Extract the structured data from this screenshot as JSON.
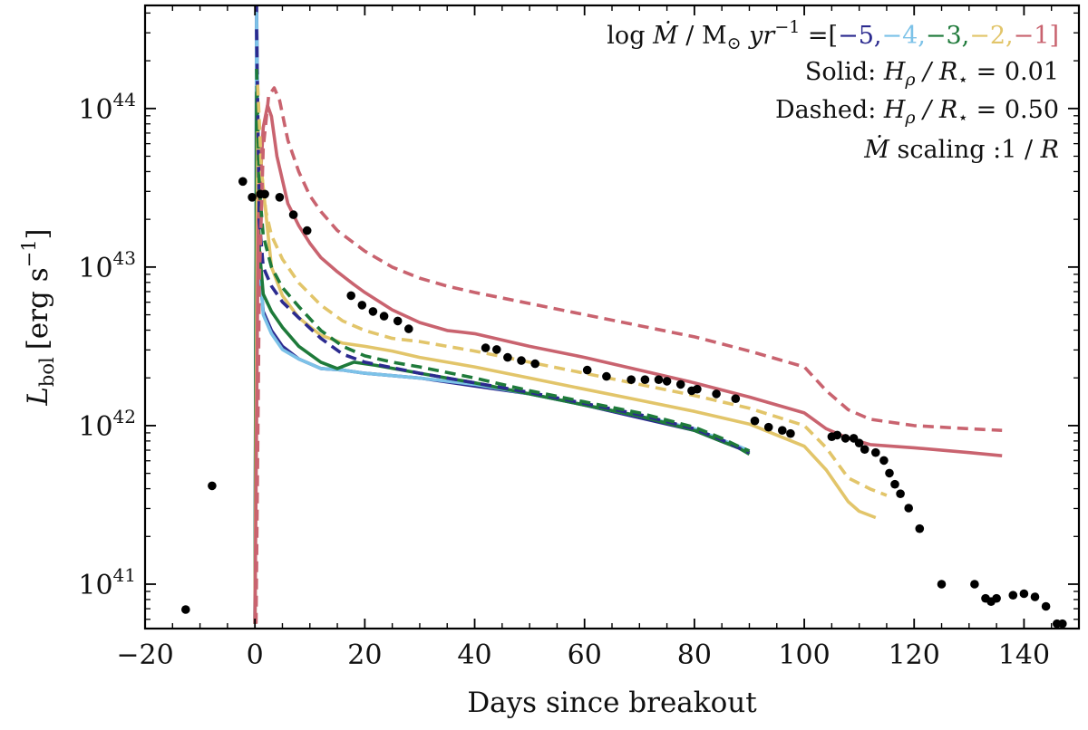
{
  "chart_data": {
    "type": "line",
    "title": "",
    "xlabel": "Days since breakout",
    "ylabel_main": "L",
    "ylabel_sub": "bol",
    "ylabel_units": "[erg s",
    "ylabel_units_exp": "−1",
    "ylabel_units_close": "]",
    "xlim": [
      -20,
      150
    ],
    "ylim_log10": [
      40.72,
      44.65
    ],
    "yscale": "log",
    "xticks": [
      -20,
      0,
      20,
      40,
      60,
      80,
      100,
      120,
      140
    ],
    "xtick_labels": [
      "−20",
      "0",
      "20",
      "40",
      "60",
      "80",
      "100",
      "120",
      "140"
    ],
    "yticks_log10": [
      41,
      42,
      43,
      44
    ],
    "ytick_base": "10",
    "ytick_exps": [
      "41",
      "42",
      "43",
      "44"
    ],
    "grid": false,
    "legend": {
      "placement": "top-right",
      "line1_prefix": "log ",
      "line1_mdot": "Ṁ",
      "line1_mid": " / M",
      "line1_sun": "⊙",
      "line1_yr": " yr",
      "line1_yr_exp": "−1",
      "line1_eq": " =[",
      "line1_close": "]",
      "mdot_values": [
        {
          "label": "−5,",
          "color": "#2b2a8f"
        },
        {
          "label": "−4,",
          "color": "#7cc2e8"
        },
        {
          "label": "−3,",
          "color": "#1e7a3a"
        },
        {
          "label": "−2,",
          "color": "#e2c56a"
        },
        {
          "label": "−1",
          "color": "#c9636f"
        }
      ],
      "solid_label": "Solid: ",
      "solid_h": "H",
      "solid_rho": "ρ",
      "solid_r": " / R",
      "solid_star": "⋆",
      "solid_value": " = 0.01",
      "dashed_label": "Dashed: ",
      "dashed_h": "H",
      "dashed_rho": "ρ",
      "dashed_r": " / R",
      "dashed_star": "⋆",
      "dashed_value": " = 0.50",
      "scaling_mdot": "Ṁ",
      "scaling_text": " scaling :1 / ",
      "scaling_r": "R"
    },
    "colors": {
      "m5": "#2b2a8f",
      "m4": "#7cc2e8",
      "m3": "#1e7a3a",
      "m2": "#e2c56a",
      "m1": "#c9636f",
      "obs": "#000000"
    },
    "series": [
      {
        "name": "logMdot=-5 solid",
        "color": "#2b2a8f",
        "dash": false,
        "x": [
          0,
          0.3,
          0.8,
          1.5,
          3,
          5,
          8,
          12,
          16,
          20,
          30,
          40,
          50,
          60,
          70,
          80,
          85,
          88,
          90
        ],
        "y": [
          40.75,
          44.65,
          43.0,
          42.72,
          42.6,
          42.5,
          42.42,
          42.36,
          42.35,
          42.33,
          42.3,
          42.25,
          42.2,
          42.13,
          42.05,
          41.97,
          41.9,
          41.86,
          41.83
        ]
      },
      {
        "name": "logMdot=-4 solid",
        "color": "#7cc2e8",
        "dash": false,
        "x": [
          0,
          0.3,
          0.8,
          1.5,
          3,
          5,
          8,
          12,
          16,
          20,
          30,
          40,
          50,
          60,
          70,
          80,
          85,
          88,
          90
        ],
        "y": [
          40.75,
          44.6,
          43.05,
          42.7,
          42.58,
          42.48,
          42.42,
          42.36,
          42.35,
          42.33,
          42.3,
          42.26,
          42.2,
          42.13,
          42.06,
          41.98,
          41.91,
          41.87,
          41.84
        ]
      },
      {
        "name": "logMdot=-3 solid",
        "color": "#1e7a3a",
        "dash": false,
        "x": [
          0,
          0.3,
          0.8,
          1.5,
          3,
          5,
          8,
          12,
          15,
          18,
          22,
          30,
          40,
          50,
          60,
          70,
          80,
          85,
          88,
          90
        ],
        "y": [
          40.75,
          44.1,
          43.12,
          42.83,
          42.72,
          42.62,
          42.5,
          42.4,
          42.36,
          42.4,
          42.38,
          42.33,
          42.27,
          42.2,
          42.13,
          42.06,
          41.97,
          41.9,
          41.86,
          41.82
        ]
      },
      {
        "name": "logMdot=-2 solid",
        "color": "#e2c56a",
        "dash": false,
        "x": [
          0,
          0.5,
          1.5,
          3,
          5,
          8,
          12,
          16,
          20,
          25,
          30,
          40,
          50,
          60,
          70,
          80,
          90,
          100,
          104,
          108,
          110,
          113
        ],
        "y": [
          40.75,
          43.85,
          43.5,
          43.0,
          42.82,
          42.68,
          42.57,
          42.52,
          42.5,
          42.47,
          42.43,
          42.37,
          42.3,
          42.23,
          42.16,
          42.09,
          42.01,
          41.87,
          41.72,
          41.52,
          41.46,
          41.42
        ]
      },
      {
        "name": "logMdot=-1 solid",
        "color": "#c9636f",
        "dash": false,
        "x": [
          0,
          0.6,
          1.5,
          2.3,
          3,
          4,
          6,
          8,
          10,
          12,
          15,
          18,
          20,
          25,
          30,
          35,
          40,
          50,
          60,
          70,
          80,
          90,
          100,
          104,
          108,
          112,
          120,
          130,
          136
        ],
        "y": [
          40.75,
          43.3,
          43.88,
          44.02,
          43.95,
          43.7,
          43.4,
          43.26,
          43.15,
          43.06,
          42.97,
          42.89,
          42.84,
          42.73,
          42.65,
          42.6,
          42.58,
          42.5,
          42.43,
          42.35,
          42.27,
          42.18,
          42.08,
          41.98,
          41.92,
          41.88,
          41.86,
          41.83,
          41.81
        ]
      },
      {
        "name": "logMdot=-5 dashed",
        "color": "#2b2a8f",
        "dash": true,
        "x": [
          0.3,
          0.8,
          1.5,
          3,
          5,
          8,
          12,
          16,
          20,
          30,
          40,
          50,
          60,
          70,
          80,
          85,
          88,
          90
        ],
        "y": [
          44.5,
          43.3,
          43.0,
          42.88,
          42.78,
          42.68,
          42.55,
          42.45,
          42.4,
          42.33,
          42.27,
          42.21,
          42.14,
          42.07,
          41.98,
          41.91,
          41.86,
          41.83
        ]
      },
      {
        "name": "logMdot=-3 dashed",
        "color": "#1e7a3a",
        "dash": true,
        "x": [
          0.3,
          0.8,
          1.5,
          3,
          5,
          8,
          12,
          16,
          20,
          25,
          30,
          40,
          50,
          60,
          70,
          80,
          85,
          88,
          90
        ],
        "y": [
          44.25,
          43.5,
          43.2,
          43.0,
          42.87,
          42.75,
          42.6,
          42.5,
          42.44,
          42.4,
          42.37,
          42.3,
          42.22,
          42.15,
          42.08,
          41.99,
          41.92,
          41.87,
          41.84
        ]
      },
      {
        "name": "logMdot=-2 dashed",
        "color": "#e2c56a",
        "dash": true,
        "x": [
          0.5,
          1.2,
          2,
          3,
          5,
          8,
          12,
          16,
          20,
          25,
          30,
          40,
          50,
          60,
          70,
          80,
          90,
          100,
          104,
          108,
          112,
          115
        ],
        "y": [
          44.15,
          43.6,
          43.35,
          43.2,
          43.05,
          42.9,
          42.76,
          42.66,
          42.6,
          42.55,
          42.53,
          42.47,
          42.4,
          42.33,
          42.26,
          42.19,
          42.11,
          42.0,
          41.86,
          41.67,
          41.6,
          41.56
        ]
      },
      {
        "name": "logMdot=-1 dashed",
        "color": "#c9636f",
        "dash": true,
        "x": [
          0.2,
          0.8,
          1.5,
          2.5,
          3.5,
          4.5,
          6,
          8,
          10,
          12,
          15,
          20,
          25,
          30,
          35,
          40,
          50,
          60,
          70,
          80,
          90,
          100,
          104,
          108,
          112,
          120,
          130,
          136
        ],
        "y": [
          40.75,
          42.9,
          43.75,
          44.08,
          44.13,
          44.05,
          43.8,
          43.6,
          43.45,
          43.35,
          43.23,
          43.1,
          43.0,
          42.93,
          42.88,
          42.84,
          42.77,
          42.7,
          42.63,
          42.56,
          42.47,
          42.37,
          42.22,
          42.1,
          42.04,
          42.0,
          41.98,
          41.97
        ]
      }
    ],
    "observations": {
      "name": "observed bolometric luminosity",
      "color": "#000000",
      "x": [
        -12.6,
        -7.8,
        -2.2,
        -0.5,
        1.0,
        1.8,
        4.5,
        7.0,
        9.5,
        17.5,
        19.5,
        21.5,
        23.5,
        26.0,
        28.0,
        42.0,
        44.0,
        46.0,
        48.5,
        51.0,
        60.5,
        64.0,
        68.5,
        71.0,
        73.5,
        75.0,
        77.5,
        79.5,
        80.5,
        84.0,
        87.5,
        91.0,
        93.5,
        96.0,
        97.5,
        105.0,
        106.0,
        107.5,
        109.0,
        110.0,
        111.0,
        113.0,
        114.5,
        115.5,
        116.5,
        117.5,
        119.0,
        121.0,
        125.0,
        131.0,
        133.0,
        134.0,
        135.0,
        138.0,
        140.0,
        142.0,
        144.0,
        146.0,
        147.0
      ],
      "y": [
        40.84,
        41.62,
        43.54,
        43.44,
        43.46,
        43.46,
        43.44,
        43.33,
        43.23,
        42.82,
        42.76,
        42.72,
        42.69,
        42.66,
        42.61,
        42.49,
        42.48,
        42.43,
        42.41,
        42.39,
        42.35,
        42.31,
        42.29,
        42.29,
        42.29,
        42.28,
        42.26,
        42.22,
        42.23,
        42.2,
        42.17,
        42.03,
        41.99,
        41.97,
        41.95,
        41.93,
        41.94,
        41.92,
        41.92,
        41.89,
        41.85,
        41.83,
        41.78,
        41.7,
        41.63,
        41.57,
        41.48,
        41.35,
        41.0,
        41.0,
        40.91,
        40.89,
        40.91,
        40.93,
        40.94,
        40.92,
        40.86,
        40.75,
        40.75
      ]
    }
  }
}
